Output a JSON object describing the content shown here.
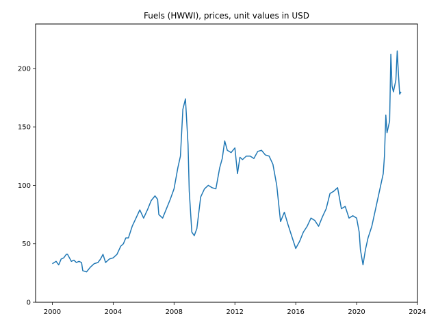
{
  "chart_data": {
    "type": "line",
    "title": "Fuels (HWWI), prices, unit values in USD",
    "xlabel": "",
    "ylabel": "",
    "xlim": [
      1998.9,
      2024.0
    ],
    "ylim": [
      0,
      238
    ],
    "x_ticks": [
      2000,
      2004,
      2008,
      2012,
      2016,
      2020,
      2024
    ],
    "x_tick_labels": [
      "2000",
      "2004",
      "2008",
      "2012",
      "2016",
      "2020",
      "2024"
    ],
    "y_ticks": [
      0,
      50,
      100,
      150,
      200
    ],
    "y_tick_labels": [
      "0",
      "50",
      "100",
      "150",
      "200"
    ],
    "grid": false,
    "legend": "none",
    "color": "#1f77b4",
    "series": [
      {
        "x": [
          2000.0,
          2000.25,
          2000.42,
          2000.58,
          2000.75,
          2000.92,
          2001.0,
          2001.25,
          2001.42,
          2001.58,
          2001.75,
          2001.92,
          2002.0,
          2002.25,
          2002.5,
          2002.75,
          2003.0,
          2003.17,
          2003.33,
          2003.5,
          2003.75,
          2004.0,
          2004.25,
          2004.5,
          2004.67,
          2004.83,
          2005.0,
          2005.25,
          2005.5,
          2005.75,
          2006.0,
          2006.25,
          2006.5,
          2006.75,
          2006.92,
          2007.0,
          2007.25,
          2007.5,
          2007.75,
          2008.0,
          2008.25,
          2008.42,
          2008.58,
          2008.75,
          2008.92,
          2009.0,
          2009.17,
          2009.33,
          2009.5,
          2009.75,
          2010.0,
          2010.25,
          2010.5,
          2010.75,
          2011.0,
          2011.17,
          2011.33,
          2011.5,
          2011.75,
          2012.0,
          2012.17,
          2012.33,
          2012.5,
          2012.75,
          2013.0,
          2013.25,
          2013.5,
          2013.75,
          2014.0,
          2014.25,
          2014.5,
          2014.75,
          2015.0,
          2015.25,
          2015.5,
          2015.75,
          2016.0,
          2016.25,
          2016.5,
          2016.75,
          2017.0,
          2017.25,
          2017.5,
          2017.75,
          2018.0,
          2018.25,
          2018.5,
          2018.75,
          2019.0,
          2019.25,
          2019.5,
          2019.75,
          2020.0,
          2020.17,
          2020.25,
          2020.42,
          2020.58,
          2020.75,
          2021.0,
          2021.25,
          2021.5,
          2021.75,
          2021.83,
          2021.92,
          2022.0,
          2022.17,
          2022.25,
          2022.33,
          2022.42,
          2022.5,
          2022.58,
          2022.67,
          2022.75,
          2022.83,
          2022.92
        ],
        "values": [
          33,
          35,
          32,
          37,
          38,
          41,
          41,
          35,
          36,
          34,
          35,
          34,
          27,
          26,
          30,
          33,
          34,
          37,
          41,
          34,
          37,
          38,
          41,
          48,
          50,
          55,
          55,
          65,
          72,
          79,
          72,
          79,
          87,
          91,
          88,
          75,
          72,
          80,
          88,
          97,
          115,
          125,
          165,
          174,
          135,
          95,
          60,
          57,
          63,
          90,
          97,
          100,
          98,
          97,
          115,
          123,
          138,
          130,
          128,
          132,
          110,
          124,
          122,
          125,
          125,
          123,
          129,
          130,
          126,
          125,
          118,
          100,
          69,
          77,
          66,
          56,
          46,
          52,
          60,
          65,
          72,
          70,
          65,
          73,
          80,
          93,
          95,
          98,
          80,
          82,
          72,
          74,
          72,
          60,
          45,
          32,
          45,
          55,
          65,
          80,
          95,
          110,
          125,
          160,
          145,
          155,
          212,
          185,
          180,
          185,
          190,
          215,
          195,
          178,
          180
        ]
      }
    ]
  }
}
